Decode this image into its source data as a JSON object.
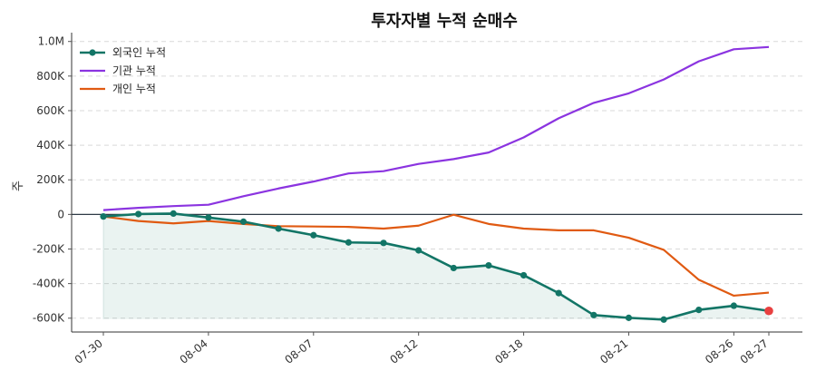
{
  "chart_data": {
    "type": "line",
    "title": "투자자별 누적 순매수",
    "xlabel": "",
    "ylabel": "주",
    "x": [
      "07-30",
      "07-31",
      "08-01",
      "08-04",
      "08-05",
      "08-06",
      "08-07",
      "08-08",
      "08-11",
      "08-12",
      "08-13",
      "08-14",
      "08-18",
      "08-19",
      "08-20",
      "08-21",
      "08-22",
      "08-25",
      "08-26",
      "08-27"
    ],
    "xtick_labels": [
      "07-30",
      "08-04",
      "08-07",
      "08-12",
      "08-18",
      "08-21",
      "08-26",
      "08-27"
    ],
    "ylim": [
      -680000,
      1030000
    ],
    "yticks": [
      -600000,
      -400000,
      -200000,
      0,
      200000,
      400000,
      600000,
      800000,
      1000000
    ],
    "ytick_labels": [
      "-600K",
      "-400K",
      "-200K",
      "0",
      "200K",
      "400K",
      "600K",
      "800K",
      "1.0M"
    ],
    "grid": "horizontal-dashed",
    "legend_position": "top-left",
    "series": [
      {
        "name": "외국인 누적",
        "color": "#127566",
        "marker": "circle",
        "values": [
          -12000,
          2000,
          5000,
          -18000,
          -42000,
          -82000,
          -120000,
          -162000,
          -165000,
          -208000,
          -310000,
          -295000,
          -352000,
          -455000,
          -582000,
          -598000,
          -608000,
          -552000,
          -528000,
          -558000
        ]
      },
      {
        "name": "기관 누적",
        "color": "#8b34e0",
        "marker": "none",
        "values": [
          25000,
          38000,
          48000,
          56000,
          105000,
          150000,
          190000,
          237000,
          250000,
          292000,
          320000,
          358000,
          445000,
          556000,
          645000,
          700000,
          780000,
          885000,
          955000,
          968000
        ]
      },
      {
        "name": "개인 누적",
        "color": "#e05a12",
        "marker": "none",
        "values": [
          -12000,
          -38000,
          -52000,
          -38000,
          -55000,
          -68000,
          -70000,
          -72000,
          -82000,
          -65000,
          -2000,
          -55000,
          -82000,
          -92000,
          -92000,
          -135000,
          -205000,
          -378000,
          -470000,
          -452000
        ]
      }
    ],
    "highlight_last_point_color": "#e84040"
  }
}
